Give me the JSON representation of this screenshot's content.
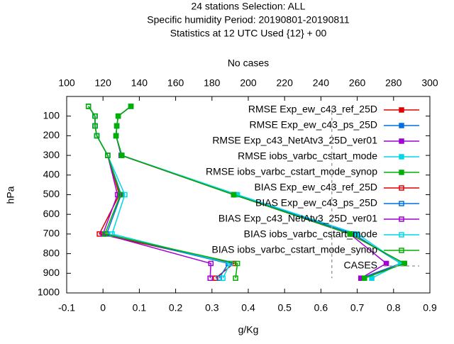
{
  "chart_data": {
    "type": "line",
    "title": [
      "24 stations Selection: ALL",
      "Specific humidity  Period: 20190801-20190811",
      "Statistics at 12 UTC  Used {12} + 00"
    ],
    "xlabel": "g/Kg",
    "ylabel": "hPa",
    "x2label": "No cases",
    "xlim": [
      -0.1,
      0.9
    ],
    "xticks": [
      -0.1,
      0,
      0.1,
      0.2,
      0.3,
      0.4,
      0.5,
      0.6,
      0.7,
      0.8,
      0.9
    ],
    "x2lim": [
      100,
      300
    ],
    "x2ticks": [
      100,
      120,
      140,
      160,
      180,
      200,
      220,
      240,
      260,
      280,
      300
    ],
    "ylim": [
      1000,
      0
    ],
    "yticks": [
      100,
      200,
      300,
      400,
      500,
      600,
      700,
      800,
      900,
      1000
    ],
    "levels": [
      50,
      100,
      150,
      200,
      300,
      500,
      700,
      850,
      925
    ],
    "series": [
      {
        "name": "RMSE Exp_ew_c43_ref_25D",
        "color": "#e00000",
        "marker": "filled",
        "values": [
          0.077,
          0.042,
          0.038,
          0.036,
          0.05,
          0.36,
          0.68,
          0.83,
          0.71
        ]
      },
      {
        "name": "RMSE Exp_ew_c43_ps_25D",
        "color": "#0070e0",
        "marker": "filled",
        "values": [
          0.077,
          0.042,
          0.038,
          0.036,
          0.05,
          0.365,
          0.69,
          0.82,
          0.71
        ]
      },
      {
        "name": "RMSE Exp_c43_NetAtv3_25D_ver01",
        "color": "#a000d0",
        "marker": "filled",
        "values": [
          0.077,
          0.042,
          0.038,
          0.036,
          0.051,
          0.36,
          0.68,
          0.78,
          0.71
        ]
      },
      {
        "name": "RMSE iobs_varbc_cstart_mode",
        "color": "#00d8e8",
        "marker": "filled",
        "values": [
          0.077,
          0.042,
          0.038,
          0.036,
          0.052,
          0.37,
          0.7,
          0.82,
          0.74
        ]
      },
      {
        "name": "RMSE iobs_varbc_cstart_mode_synop",
        "color": "#00b000",
        "marker": "filled",
        "values": [
          0.077,
          0.042,
          0.038,
          0.036,
          0.052,
          0.36,
          0.68,
          0.83,
          0.72
        ]
      },
      {
        "name": "BIAS Exp_ew_c43_ref_25D",
        "color": "#e00000",
        "marker": "open",
        "values": [
          -0.04,
          -0.022,
          -0.022,
          -0.017,
          0.013,
          0.045,
          -0.01,
          0.36,
          0.31
        ]
      },
      {
        "name": "BIAS Exp_ew_c43_ps_25D",
        "color": "#0070e0",
        "marker": "open",
        "values": [
          -0.04,
          -0.022,
          -0.022,
          -0.017,
          0.013,
          0.05,
          0.01,
          0.345,
          0.32
        ]
      },
      {
        "name": "BIAS Exp_c43_NetAtv3_25D_ver01",
        "color": "#a000d0",
        "marker": "open",
        "values": [
          -0.04,
          -0.022,
          -0.022,
          -0.017,
          0.013,
          0.04,
          0.0,
          0.297,
          0.295
        ]
      },
      {
        "name": "BIAS iobs_varbc_cstart_mode",
        "color": "#00d8e8",
        "marker": "open",
        "values": [
          -0.04,
          -0.022,
          -0.022,
          -0.017,
          0.013,
          0.06,
          0.025,
          0.35,
          0.33
        ]
      },
      {
        "name": "BIAS iobs_varbc_cstart_mode_synop",
        "color": "#00b000",
        "marker": "open",
        "values": [
          -0.04,
          -0.022,
          -0.022,
          -0.017,
          0.013,
          0.048,
          0.005,
          0.37,
          0.365
        ]
      },
      {
        "name": "CASES",
        "color": "#a0a0a0",
        "marker": "none",
        "dash": true,
        "axis": "x2",
        "values": [
          246,
          246,
          246,
          246,
          246,
          246,
          246,
          246,
          246
        ]
      }
    ]
  }
}
